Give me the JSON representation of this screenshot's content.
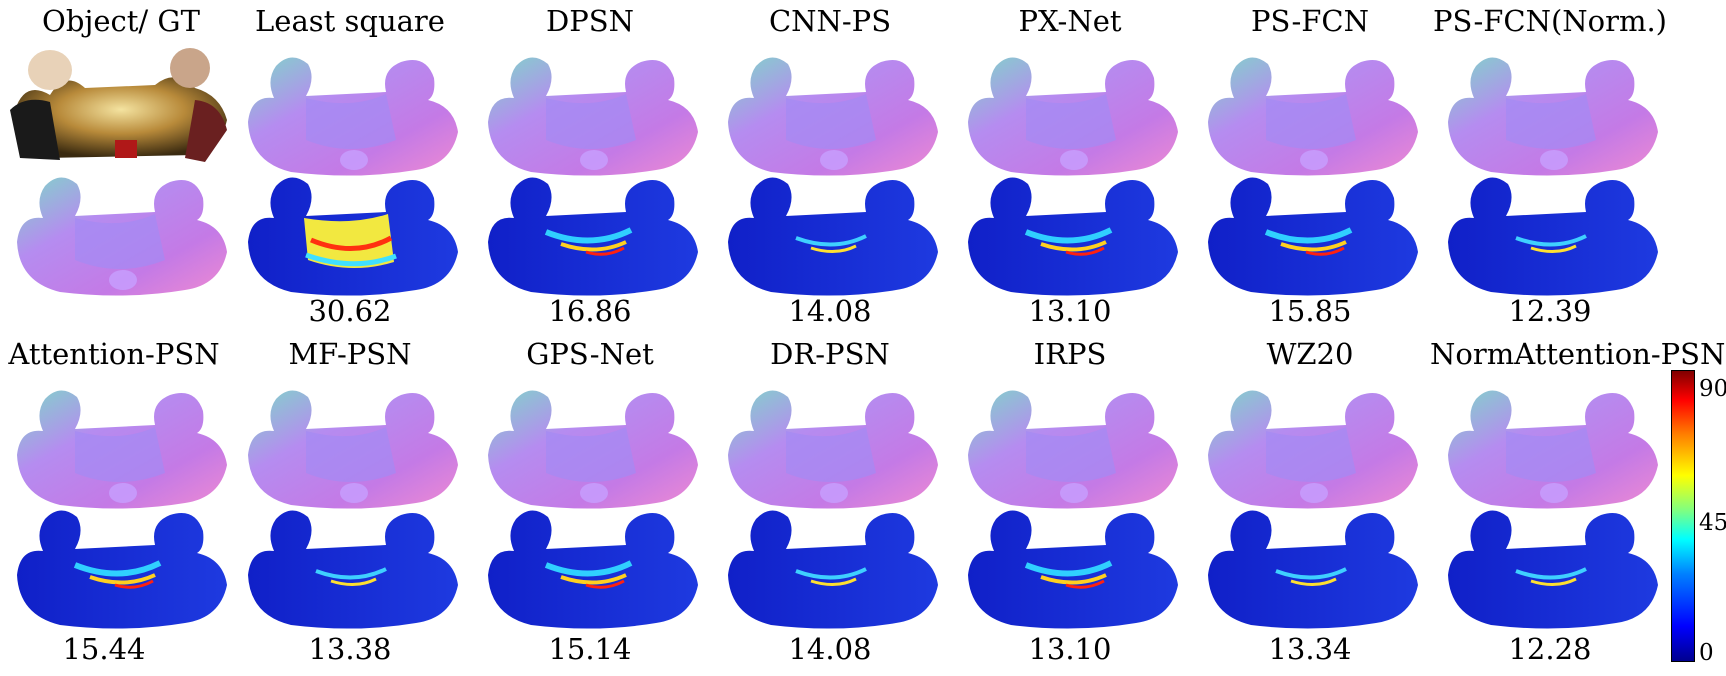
{
  "row1_titles": [
    "Object/ GT",
    "Least square",
    "DPSN",
    "CNN-PS",
    "PX-Net",
    "PS-FCN",
    "PS-FCN(Norm.)"
  ],
  "row1_scores": [
    "",
    "30.62",
    "16.86",
    "14.08",
    "13.10",
    "15.85",
    "12.39"
  ],
  "row2_titles": [
    "Attention-PSN",
    "MF-PSN",
    "GPS-Net",
    "DR-PSN",
    "IRPS",
    "WZ20",
    "NormAttention-PSN"
  ],
  "row2_scores": [
    "15.44",
    "13.38",
    "15.14",
    "14.08",
    "13.10",
    "13.34",
    "12.28"
  ],
  "colorbar": {
    "max": "90",
    "mid": "45",
    "min": "0"
  },
  "colors": {
    "normal_map_base": "#b58cf0",
    "error_low": "#1020c8",
    "error_high": "#e02010"
  }
}
